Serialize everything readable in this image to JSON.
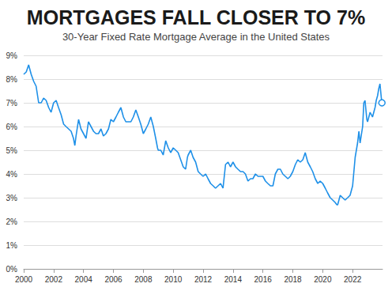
{
  "chart_data": {
    "type": "line",
    "title": "MORTGAGES FALL CLOSER TO 7%",
    "subtitle": "30-Year Fixed Rate Mortgage Average in the United States",
    "x": [
      2000.0,
      2000.17,
      2000.33,
      2000.5,
      2000.67,
      2000.83,
      2001.0,
      2001.17,
      2001.33,
      2001.5,
      2001.67,
      2001.83,
      2002.0,
      2002.17,
      2002.33,
      2002.5,
      2002.67,
      2002.83,
      2003.0,
      2003.17,
      2003.33,
      2003.42,
      2003.5,
      2003.67,
      2003.83,
      2004.0,
      2004.17,
      2004.33,
      2004.5,
      2004.67,
      2004.83,
      2005.0,
      2005.17,
      2005.33,
      2005.5,
      2005.67,
      2005.83,
      2006.0,
      2006.17,
      2006.33,
      2006.5,
      2006.67,
      2006.83,
      2007.0,
      2007.17,
      2007.33,
      2007.5,
      2007.67,
      2007.83,
      2008.0,
      2008.17,
      2008.33,
      2008.5,
      2008.67,
      2008.83,
      2008.95,
      2009.0,
      2009.17,
      2009.33,
      2009.5,
      2009.67,
      2009.83,
      2010.0,
      2010.17,
      2010.33,
      2010.5,
      2010.67,
      2010.83,
      2010.95,
      2011.0,
      2011.17,
      2011.33,
      2011.5,
      2011.67,
      2011.83,
      2012.0,
      2012.17,
      2012.33,
      2012.5,
      2012.67,
      2012.83,
      2013.0,
      2013.17,
      2013.33,
      2013.5,
      2013.67,
      2013.83,
      2014.0,
      2014.17,
      2014.33,
      2014.5,
      2014.67,
      2014.83,
      2015.0,
      2015.17,
      2015.33,
      2015.5,
      2015.67,
      2015.83,
      2016.0,
      2016.17,
      2016.33,
      2016.5,
      2016.67,
      2016.83,
      2017.0,
      2017.17,
      2017.33,
      2017.5,
      2017.67,
      2017.83,
      2018.0,
      2018.17,
      2018.33,
      2018.5,
      2018.67,
      2018.83,
      2019.0,
      2019.17,
      2019.33,
      2019.5,
      2019.67,
      2019.83,
      2020.0,
      2020.17,
      2020.33,
      2020.5,
      2020.67,
      2020.83,
      2020.95,
      2021.0,
      2021.17,
      2021.33,
      2021.5,
      2021.67,
      2021.83,
      2022.0,
      2022.17,
      2022.33,
      2022.42,
      2022.5,
      2022.67,
      2022.75,
      2022.83,
      2022.95,
      2023.0,
      2023.17,
      2023.33,
      2023.5,
      2023.58,
      2023.67,
      2023.75,
      2023.83,
      2023.92,
      2023.96
    ],
    "values": [
      8.2,
      8.3,
      8.6,
      8.2,
      7.9,
      7.7,
      7.0,
      7.0,
      7.2,
      7.1,
      6.8,
      6.6,
      7.0,
      7.1,
      6.8,
      6.5,
      6.1,
      6.0,
      5.9,
      5.8,
      5.5,
      5.2,
      5.6,
      6.3,
      5.9,
      5.7,
      5.5,
      6.2,
      6.0,
      5.8,
      5.7,
      5.7,
      5.9,
      5.6,
      5.7,
      5.9,
      6.3,
      6.2,
      6.4,
      6.6,
      6.8,
      6.4,
      6.2,
      6.2,
      6.2,
      6.4,
      6.7,
      6.4,
      6.1,
      5.7,
      5.9,
      6.1,
      6.4,
      6.0,
      5.5,
      5.1,
      5.0,
      5.0,
      4.8,
      5.4,
      5.1,
      4.9,
      5.1,
      5.0,
      4.9,
      4.6,
      4.3,
      4.2,
      4.7,
      4.8,
      5.0,
      4.7,
      4.5,
      4.1,
      4.0,
      3.9,
      4.0,
      3.8,
      3.6,
      3.5,
      3.4,
      3.5,
      3.6,
      3.4,
      4.4,
      4.5,
      4.3,
      4.5,
      4.3,
      4.2,
      4.1,
      4.1,
      4.0,
      3.7,
      3.8,
      3.8,
      4.0,
      3.9,
      3.9,
      3.9,
      3.7,
      3.6,
      3.5,
      3.5,
      4.0,
      4.2,
      4.2,
      4.0,
      3.9,
      3.8,
      3.9,
      4.1,
      4.4,
      4.6,
      4.5,
      4.6,
      4.9,
      4.5,
      4.3,
      4.1,
      3.8,
      3.6,
      3.7,
      3.6,
      3.4,
      3.2,
      3.0,
      2.9,
      2.8,
      2.7,
      2.7,
      3.1,
      3.0,
      2.9,
      3.0,
      3.1,
      3.5,
      4.7,
      5.3,
      5.8,
      5.3,
      6.0,
      7.0,
      7.1,
      6.3,
      6.2,
      6.6,
      6.4,
      6.8,
      7.1,
      7.3,
      7.6,
      7.8,
      7.2,
      7.0
    ],
    "color": "#1e90e8",
    "marker": "circle",
    "xlim": [
      2000,
      2024
    ],
    "xticks": [
      2000,
      2002,
      2004,
      2006,
      2008,
      2010,
      2012,
      2014,
      2016,
      2018,
      2020,
      2022
    ],
    "ylim": [
      0,
      9
    ],
    "yticks": [
      {
        "value": 0,
        "label": "0%"
      },
      {
        "value": 1,
        "label": "1%"
      },
      {
        "value": 2,
        "label": "2%"
      },
      {
        "value": 3,
        "label": "3%"
      },
      {
        "value": 4,
        "label": "4%"
      },
      {
        "value": 5,
        "label": "5%"
      },
      {
        "value": 6,
        "label": "6%"
      },
      {
        "value": 7,
        "label": "7%"
      },
      {
        "value": 8,
        "label": "8%"
      },
      {
        "value": 9,
        "label": "9%"
      }
    ],
    "grid": true
  }
}
